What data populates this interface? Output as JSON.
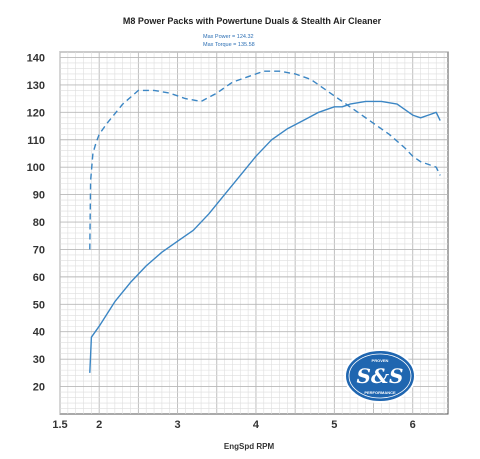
{
  "chart_data": {
    "type": "line",
    "title": "M8 Power Packs with Powertune Duals & Stealth Air Cleaner",
    "annotations": [
      "Max Power  = 124.32",
      "Max Torque = 135.58"
    ],
    "xlabel": "EngSpd RPM",
    "ylabel": "",
    "xlim": [
      1.5,
      6.45
    ],
    "ylim": [
      10,
      142
    ],
    "xticks": [
      "1.5",
      "2",
      "3",
      "4",
      "5",
      "6"
    ],
    "xtick_values": [
      1.5,
      2,
      3,
      4,
      5,
      6
    ],
    "yticks": [
      "20",
      "30",
      "40",
      "50",
      "60",
      "70",
      "80",
      "90",
      "100",
      "110",
      "120",
      "130",
      "140"
    ],
    "ytick_values": [
      20,
      30,
      40,
      50,
      60,
      70,
      80,
      90,
      100,
      110,
      120,
      130,
      140
    ],
    "grid": true,
    "series": [
      {
        "style": "solid",
        "color": "#3b86c4",
        "x": [
          1.88,
          1.9,
          2.0,
          2.2,
          2.4,
          2.6,
          2.8,
          3.0,
          3.2,
          3.4,
          3.6,
          3.8,
          4.0,
          4.2,
          4.4,
          4.6,
          4.8,
          5.0,
          5.1,
          5.2,
          5.4,
          5.6,
          5.8,
          6.0,
          6.1,
          6.2,
          6.3,
          6.35
        ],
        "y": [
          25,
          38,
          42,
          51,
          58,
          64,
          69,
          73,
          77,
          83,
          90,
          97,
          104,
          110,
          114,
          117,
          120,
          122,
          122,
          123,
          124,
          124,
          123,
          119,
          118,
          119,
          120,
          117
        ]
      },
      {
        "style": "dashed",
        "color": "#3b86c4",
        "x": [
          1.88,
          1.89,
          1.92,
          1.96,
          2.0,
          2.1,
          2.3,
          2.5,
          2.7,
          2.9,
          3.1,
          3.3,
          3.5,
          3.7,
          3.9,
          4.1,
          4.3,
          4.5,
          4.7,
          4.9,
          5.1,
          5.3,
          5.5,
          5.7,
          5.9,
          6.0,
          6.1,
          6.2,
          6.3,
          6.35
        ],
        "y": [
          70,
          95,
          105,
          109,
          112,
          116,
          123,
          128,
          128,
          127,
          125,
          124,
          127,
          131,
          133,
          135,
          135,
          134,
          132,
          128,
          124,
          120,
          116,
          112,
          107,
          104,
          102,
          101,
          100,
          97
        ]
      }
    ]
  },
  "logo": {
    "top_arc": "PROVEN",
    "main": "S&S",
    "bottom_arc": "PERFORMANCE"
  }
}
